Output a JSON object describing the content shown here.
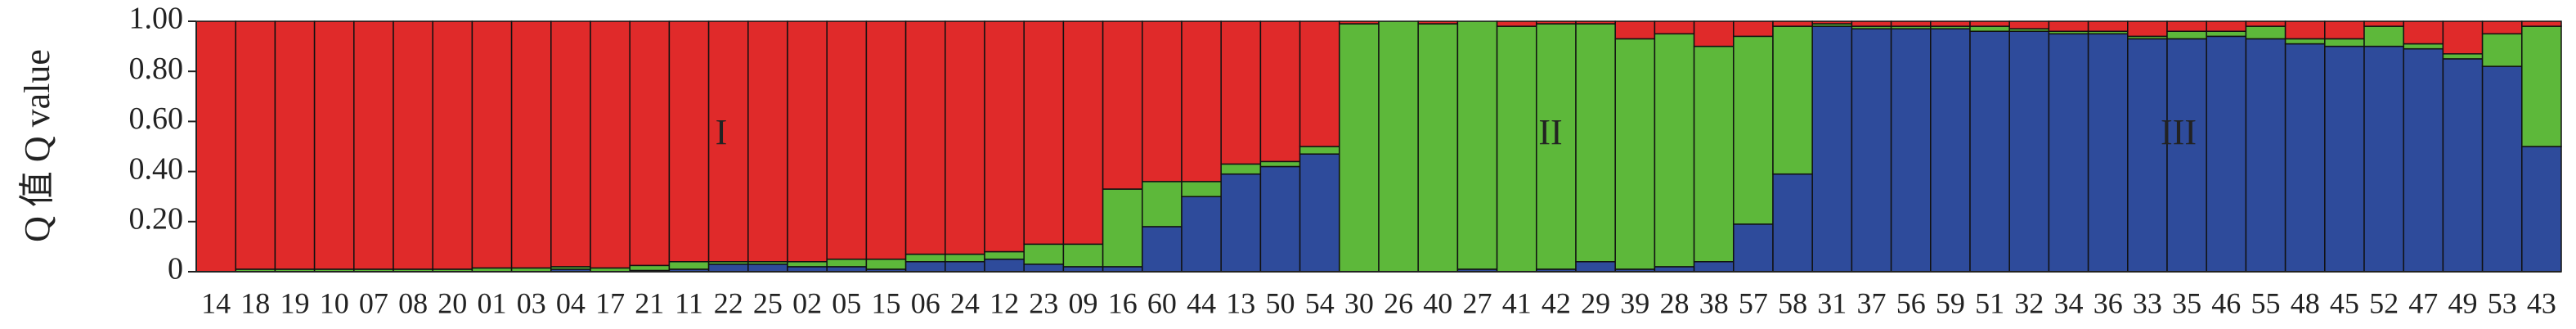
{
  "chart_data": {
    "type": "stacked_bar",
    "y_label": "Q 值 Q value",
    "categories": [
      "14",
      "18",
      "19",
      "10",
      "07",
      "08",
      "20",
      "01",
      "03",
      "04",
      "17",
      "21",
      "11",
      "22",
      "25",
      "02",
      "05",
      "15",
      "06",
      "24",
      "12",
      "23",
      "09",
      "16",
      "60",
      "44",
      "13",
      "50",
      "54",
      "30",
      "26",
      "40",
      "27",
      "41",
      "42",
      "29",
      "39",
      "28",
      "38",
      "57",
      "58",
      "31",
      "37",
      "56",
      "59",
      "51",
      "32",
      "34",
      "36",
      "33",
      "35",
      "46",
      "55",
      "48",
      "45",
      "52",
      "47",
      "49",
      "53",
      "43"
    ],
    "series": [
      {
        "color": "#2e4b9b",
        "values": [
          0,
          0,
          0,
          0,
          0,
          0,
          0,
          0,
          0,
          0.01,
          0,
          0.005,
          0.01,
          0.03,
          0.03,
          0.02,
          0.02,
          0.01,
          0.04,
          0.04,
          0.05,
          0.03,
          0.02,
          0.02,
          0.18,
          0.3,
          0.39,
          0.42,
          0.47,
          0,
          0,
          0,
          0.01,
          0,
          0.01,
          0.04,
          0.01,
          0.02,
          0.04,
          0.19,
          0.39,
          0.98,
          0.97,
          0.97,
          0.97,
          0.96,
          0.96,
          0.95,
          0.95,
          0.93,
          0.93,
          0.94,
          0.93,
          0.91,
          0.9,
          0.9,
          0.89,
          0.85,
          0.82,
          0.5
        ]
      },
      {
        "color": "#5db83a",
        "values": [
          0,
          0.01,
          0.01,
          0.01,
          0.01,
          0.01,
          0.01,
          0.015,
          0.015,
          0.01,
          0.015,
          0.02,
          0.03,
          0.01,
          0.01,
          0.02,
          0.03,
          0.04,
          0.03,
          0.03,
          0.03,
          0.08,
          0.09,
          0.31,
          0.18,
          0.06,
          0.04,
          0.02,
          0.03,
          0.99,
          1.0,
          0.99,
          0.99,
          0.98,
          0.98,
          0.95,
          0.92,
          0.93,
          0.86,
          0.75,
          0.59,
          0.01,
          0.01,
          0.01,
          0.01,
          0.02,
          0.01,
          0.01,
          0.01,
          0.01,
          0.03,
          0.02,
          0.05,
          0.02,
          0.03,
          0.08,
          0.02,
          0.02,
          0.13,
          0.48
        ]
      },
      {
        "color": "#e02a2a",
        "values": [
          1.0,
          0.99,
          0.99,
          0.99,
          0.99,
          0.99,
          0.99,
          0.985,
          0.985,
          0.98,
          0.985,
          0.975,
          0.96,
          0.96,
          0.96,
          0.96,
          0.95,
          0.95,
          0.93,
          0.93,
          0.92,
          0.89,
          0.89,
          0.67,
          0.64,
          0.64,
          0.57,
          0.56,
          0.5,
          0.01,
          0,
          0.01,
          0,
          0.02,
          0.01,
          0.01,
          0.07,
          0.05,
          0.1,
          0.06,
          0.02,
          0.01,
          0.02,
          0.02,
          0.02,
          0.02,
          0.03,
          0.04,
          0.04,
          0.06,
          0.04,
          0.04,
          0.02,
          0.07,
          0.07,
          0.02,
          0.09,
          0.13,
          0.05,
          0.02
        ]
      }
    ],
    "ylim": [
      0,
      1
    ],
    "yticks": [
      0,
      {
        "value": 0.2,
        "label": "0.20"
      },
      {
        "value": 0.4,
        "label": "0.40"
      },
      {
        "value": 0.6,
        "label": "0.60"
      },
      {
        "value": 0.8,
        "label": "0.80"
      },
      {
        "value": 1,
        "label": "1.00"
      }
    ],
    "annotations": [
      "I",
      "II",
      "III"
    ]
  }
}
